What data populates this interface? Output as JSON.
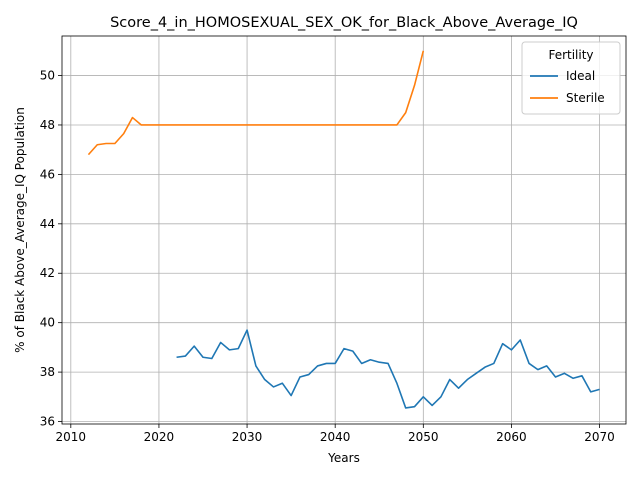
{
  "chart_data": {
    "type": "line",
    "title": "Score_4_in_HOMOSEXUAL_SEX_OK_for_Black_Above_Average_IQ",
    "xlabel": "Years",
    "ylabel": "% of Black Above_Average_IQ Population",
    "xlim": [
      2009,
      2073
    ],
    "ylim": [
      35.9,
      51.6
    ],
    "x_ticks": [
      2010,
      2020,
      2030,
      2040,
      2050,
      2060,
      2070
    ],
    "y_ticks": [
      36,
      38,
      40,
      42,
      44,
      46,
      48,
      50
    ],
    "grid": true,
    "legend": {
      "title": "Fertility",
      "placement": "top-right"
    },
    "series": [
      {
        "name": "Ideal",
        "color": "#1f77b4",
        "x": [
          2022,
          2023,
          2024,
          2025,
          2026,
          2027,
          2028,
          2029,
          2030,
          2031,
          2032,
          2033,
          2034,
          2035,
          2036,
          2037,
          2038,
          2039,
          2040,
          2041,
          2042,
          2043,
          2044,
          2045,
          2046,
          2047,
          2048,
          2049,
          2050,
          2051,
          2052,
          2053,
          2054,
          2055,
          2056,
          2057,
          2058,
          2059,
          2060,
          2061,
          2062,
          2063,
          2064,
          2065,
          2066,
          2067,
          2068,
          2069,
          2070
        ],
        "y": [
          38.6,
          38.65,
          39.05,
          38.6,
          38.55,
          39.2,
          38.9,
          38.95,
          39.7,
          38.25,
          37.7,
          37.4,
          37.55,
          37.05,
          37.8,
          37.9,
          38.25,
          38.35,
          38.35,
          38.95,
          38.85,
          38.35,
          38.5,
          38.4,
          38.35,
          37.55,
          36.55,
          36.6,
          37.0,
          36.65,
          37.0,
          37.7,
          37.35,
          37.7,
          37.95,
          38.2,
          38.35,
          39.15,
          38.9,
          39.3,
          38.35,
          38.1,
          38.25,
          37.8,
          37.95,
          37.75,
          37.85,
          37.2,
          37.3
        ]
      },
      {
        "name": "Sterile",
        "color": "#ff7f0e",
        "x": [
          2012,
          2013,
          2014,
          2015,
          2016,
          2017,
          2018,
          2019,
          2020,
          2025,
          2030,
          2035,
          2040,
          2045,
          2046,
          2047,
          2048,
          2049,
          2050
        ],
        "y": [
          46.8,
          47.2,
          47.25,
          47.25,
          47.65,
          48.3,
          48.0,
          48.0,
          48.0,
          48.0,
          48.0,
          48.0,
          48.0,
          48.0,
          48.0,
          48.0,
          48.5,
          49.6,
          51.0
        ]
      }
    ]
  }
}
